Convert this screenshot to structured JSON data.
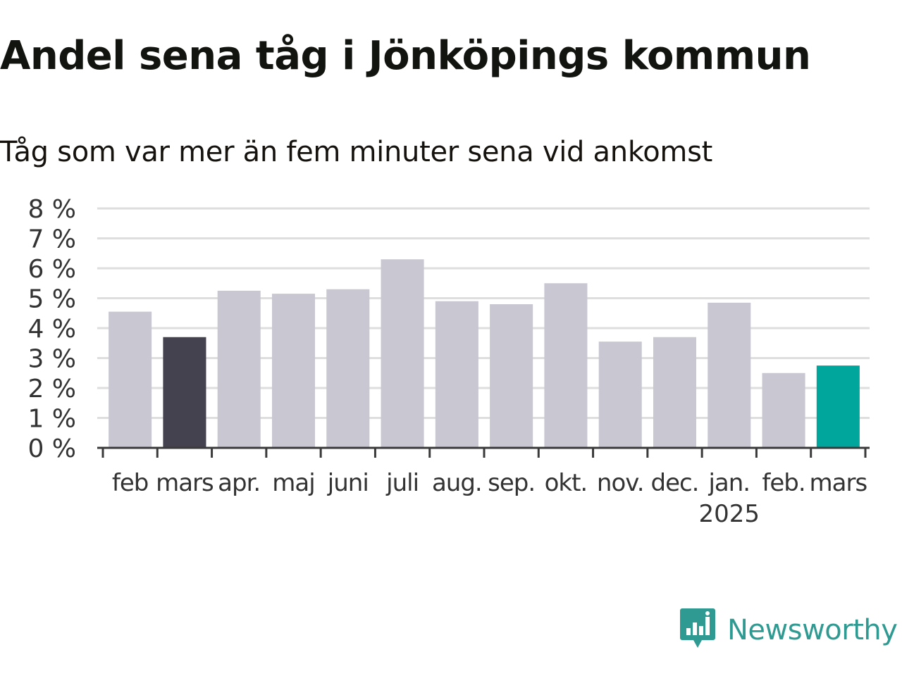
{
  "title": "Andel sena tåg i Jönköpings kommun",
  "subtitle": "Tåg som var mer än fem minuter sena vid ankomst",
  "brand": {
    "name": "Newsworthy",
    "icon": "newsworthy-logo-icon",
    "color": "#2f9a91"
  },
  "colors": {
    "default_bar": "#c8c7d2",
    "highlight_prev_year": "#45424f",
    "highlight_current": "#00a59b",
    "gridline": "#dedede",
    "axis": "#3a3a3a",
    "tick_label": "#333333"
  },
  "chart_data": {
    "type": "bar",
    "title": "Andel sena tåg i Jönköpings kommun",
    "subtitle": "Tåg som var mer än fem minuter sena vid ankomst",
    "categories": [
      "feb",
      "mars",
      "apr.",
      "maj",
      "juni",
      "juli",
      "aug.",
      "sep.",
      "okt.",
      "nov.",
      "dec.",
      "jan.",
      "feb.",
      "mars"
    ],
    "values": [
      4.55,
      3.7,
      5.25,
      5.15,
      5.3,
      6.3,
      4.9,
      4.8,
      5.5,
      3.55,
      3.7,
      4.85,
      2.5,
      2.75
    ],
    "bar_colors": [
      "#c8c7d2",
      "#45424f",
      "#c8c7d2",
      "#c8c7d2",
      "#c8c7d2",
      "#c8c7d2",
      "#c8c7d2",
      "#c8c7d2",
      "#c8c7d2",
      "#c8c7d2",
      "#c8c7d2",
      "#c8c7d2",
      "#c8c7d2",
      "#00a59b"
    ],
    "year_label": "2025",
    "year_label_under_category_index": 11,
    "xlabel": "",
    "ylabel": "",
    "ylim": [
      0,
      8
    ],
    "yticks": [
      0,
      1,
      2,
      3,
      4,
      5,
      6,
      7,
      8
    ],
    "ytick_labels": [
      "0 %",
      "1 %",
      "2 %",
      "3 %",
      "4 %",
      "5 %",
      "6 %",
      "7 %",
      "8 %"
    ],
    "grid": true,
    "legend": "none"
  }
}
